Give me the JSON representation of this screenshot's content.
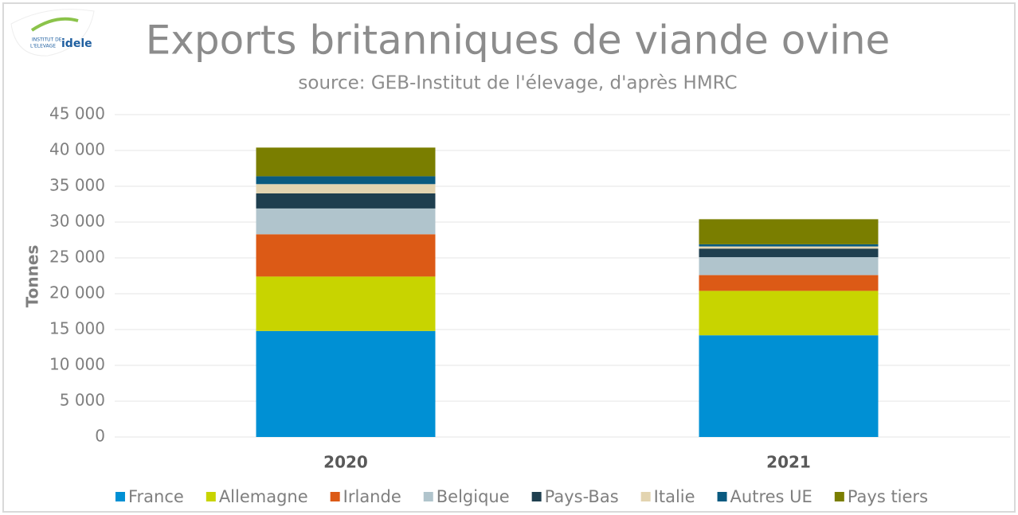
{
  "chart_data": {
    "type": "stacked_bar",
    "title": "Exports britanniques de viande ovine",
    "subtitle": "source: GEB-Institut de l'élevage, d'après HMRC",
    "logo": [
      "INSTITUT DE",
      "L'ELEVAGE",
      "idele"
    ],
    "ylabel": "Tonnes",
    "categories": [
      "2020",
      "2021"
    ],
    "series": [
      {
        "name": "France",
        "color": "#0090d4",
        "values": [
          14800,
          14200
        ]
      },
      {
        "name": "Allemagne",
        "color": "#c8d400",
        "values": [
          7600,
          6200
        ]
      },
      {
        "name": "Irlande",
        "color": "#dc5a16",
        "values": [
          5900,
          2200
        ]
      },
      {
        "name": "Belgique",
        "color": "#b0c4cc",
        "values": [
          3600,
          2500
        ]
      },
      {
        "name": "Pays-Bas",
        "color": "#1f3f4f",
        "values": [
          2100,
          1200
        ]
      },
      {
        "name": "Italie",
        "color": "#e3d4b0",
        "values": [
          1300,
          300
        ]
      },
      {
        "name": "Autres UE",
        "color": "#0a5a80",
        "values": [
          1100,
          300
        ]
      },
      {
        "name": "Pays tiers",
        "color": "#7a7e00",
        "values": [
          4000,
          3500
        ]
      }
    ],
    "ylim": [
      0,
      45000
    ],
    "yticks": [
      0,
      {
        "value": 5000,
        "label": "5 000"
      },
      {
        "value": 10000,
        "label": "10 000"
      },
      {
        "value": 15000,
        "label": "15 000"
      },
      {
        "value": 20000,
        "label": "20 000"
      },
      {
        "value": 25000,
        "label": "25 000"
      },
      {
        "value": 30000,
        "label": "30 000"
      },
      {
        "value": 35000,
        "label": "35 000"
      },
      {
        "value": 40000,
        "label": "40 000"
      },
      {
        "value": 45000,
        "label": "45 000"
      }
    ],
    "grid": true
  }
}
